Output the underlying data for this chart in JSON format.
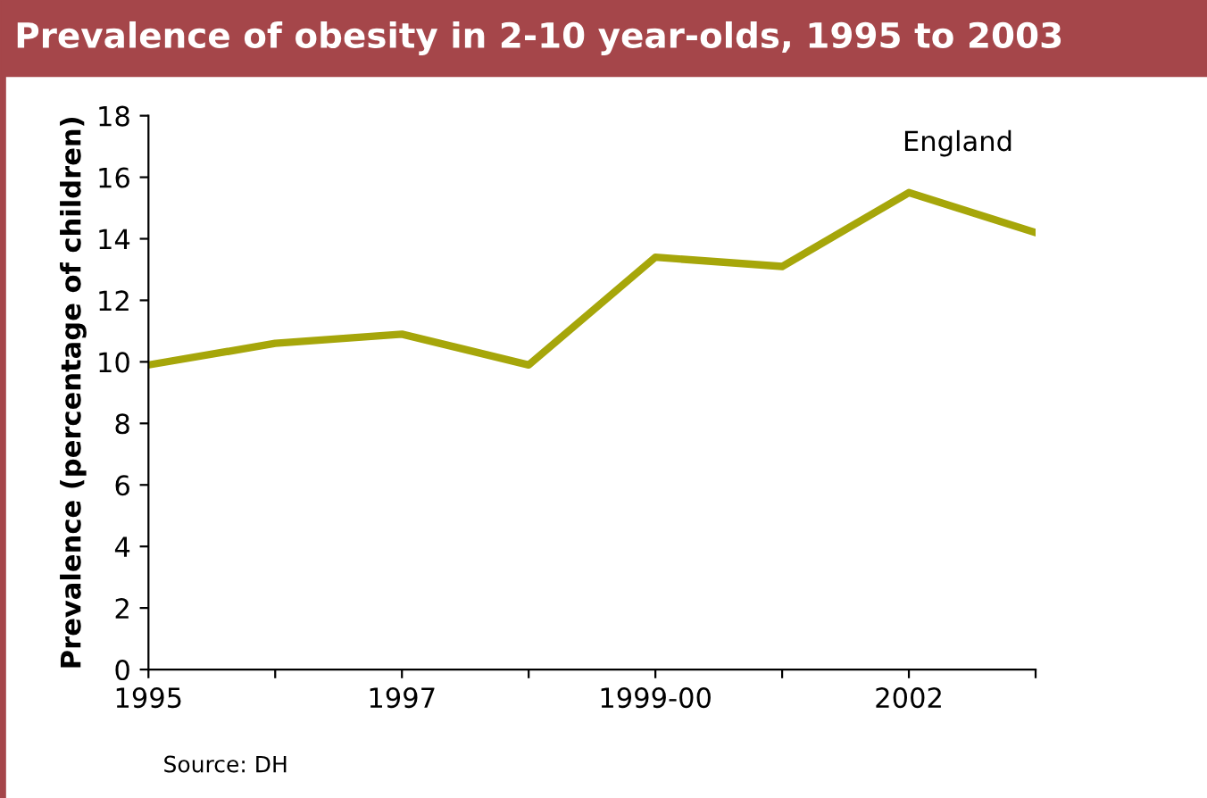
{
  "chart_data": {
    "type": "line",
    "title": "Prevalence of obesity in 2-10 year-olds, 1995 to 2003",
    "ylabel": "Prevalence (percentage of children)",
    "categories": [
      "1995",
      null,
      "1997",
      null,
      "1999-00",
      null,
      "2002",
      null
    ],
    "series": [
      {
        "name": "England",
        "color": "#a6a60a",
        "values": [
          9.9,
          10.6,
          10.9,
          9.9,
          13.4,
          13.1,
          15.5,
          14.2
        ]
      }
    ],
    "ylim": [
      0,
      18
    ],
    "yticks": [
      0,
      2,
      4,
      6,
      8,
      10,
      12,
      14,
      16,
      18
    ],
    "grid": false,
    "legend": false,
    "marker": "none",
    "line_style": "solid",
    "annotations": [
      "Source: DH"
    ]
  }
}
